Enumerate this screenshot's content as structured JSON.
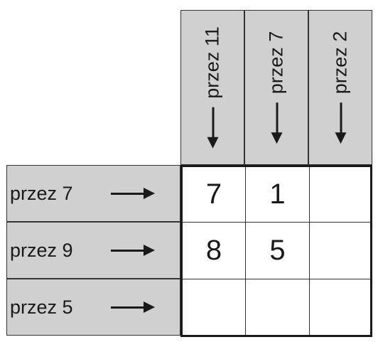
{
  "columns": [
    {
      "label": "przez 11"
    },
    {
      "label": "przez 7"
    },
    {
      "label": "przez 2"
    }
  ],
  "rows": [
    {
      "label": "przez 7"
    },
    {
      "label": "przez 9"
    },
    {
      "label": "przez 5"
    }
  ],
  "grid": [
    [
      "7",
      "1",
      ""
    ],
    [
      "8",
      "5",
      ""
    ],
    [
      "",
      "",
      ""
    ]
  ]
}
